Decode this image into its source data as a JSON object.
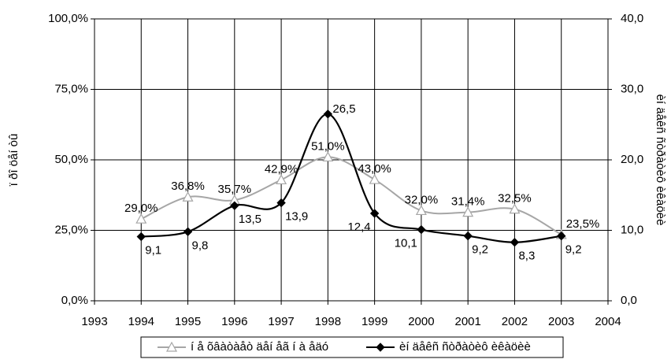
{
  "chart_data": {
    "type": "line",
    "y_label": "ï ðî öåí òû",
    "y2_label": "èí äåêñ ñòðàòèô èêàöèè",
    "x": [
      1994,
      1995,
      1996,
      1997,
      1998,
      1999,
      2000,
      2001,
      2002,
      2003
    ],
    "xlim": [
      1993,
      2004
    ],
    "xticks": [
      1993,
      1994,
      1995,
      1996,
      1997,
      1998,
      1999,
      2000,
      2001,
      2002,
      2003,
      2004
    ],
    "ylim": [
      0,
      100
    ],
    "yticks": [
      {
        "value": 0,
        "label": "0,0%"
      },
      {
        "value": 25,
        "label": "25,0%"
      },
      {
        "value": 50,
        "label": "50,0%"
      },
      {
        "value": 75,
        "label": "75,0%"
      },
      {
        "value": 100,
        "label": "100,0%"
      }
    ],
    "y2lim": [
      0,
      40
    ],
    "y2ticks": [
      {
        "value": 0,
        "label": "0,0"
      },
      {
        "value": 10,
        "label": "10,0"
      },
      {
        "value": 20,
        "label": "20,0"
      },
      {
        "value": 30,
        "label": "30,0"
      },
      {
        "value": 40,
        "label": "40,0"
      }
    ],
    "grid": true,
    "legend": "bottom",
    "series": [
      {
        "name": "í å õâàòàåò äåí åã í à åäó",
        "color": "#a6a6a6",
        "marker": "triangle",
        "values": [
          29.0,
          36.8,
          35.7,
          42.9,
          51.0,
          43.0,
          32.0,
          31.4,
          32.5,
          23.5
        ],
        "value_labels": [
          "29,0%",
          "36,8%",
          "35,7%",
          "42,9%",
          "51,0%",
          "43,0%",
          "32,0%",
          "31,4%",
          "32,5%",
          "23,5%"
        ]
      },
      {
        "name": "èí äåêñ ñòðàòèô èêàöèè",
        "color": "#000000",
        "marker": "diamond",
        "axis": "y2",
        "values": [
          9.1,
          9.8,
          13.5,
          13.9,
          26.5,
          12.4,
          10.1,
          9.2,
          8.3,
          9.2
        ],
        "value_labels": [
          "9,1",
          "9,8",
          "13,5",
          "13,9",
          "26,5",
          "12,4",
          "10,1",
          "9,2",
          "8,3",
          "9,2"
        ]
      }
    ]
  }
}
